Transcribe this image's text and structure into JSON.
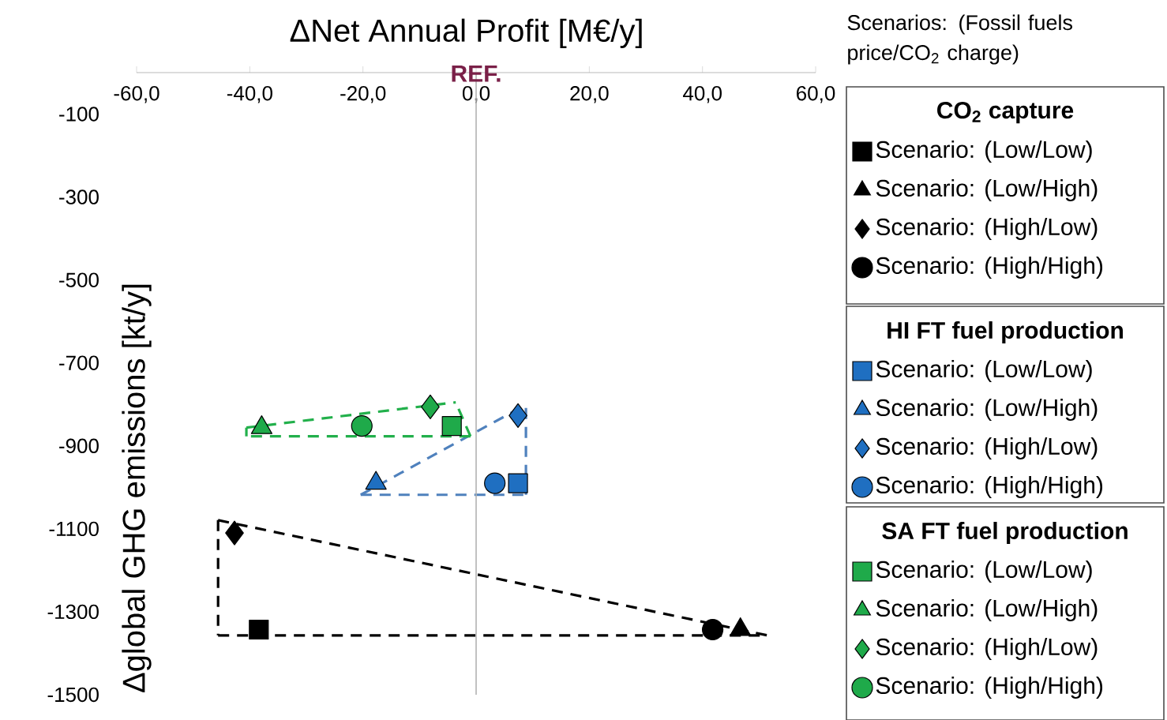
{
  "chart_data": {
    "type": "scatter",
    "xlabel": "ΔNet Annual Profit [M€/y]",
    "ylabel": "Δglobal GHG emissions [kt/y]",
    "legend_title": "Scenarios: (Fossil fuels price/CO$_{2}$ charge)",
    "legend": "right",
    "xlim": [
      -60,
      60
    ],
    "ylim": [
      -1500,
      0
    ],
    "xticks": [
      {
        "value": -60,
        "label": "-60,0"
      },
      {
        "value": -40,
        "label": "-40,0"
      },
      {
        "value": -20,
        "label": "-20,0"
      },
      {
        "value": 0,
        "label": "0,0"
      },
      {
        "value": 20,
        "label": "20,0"
      },
      {
        "value": 40,
        "label": "40,0"
      },
      {
        "value": 60,
        "label": "60,0"
      }
    ],
    "yticks": [
      -1500,
      -1300,
      -1100,
      -900,
      -700,
      -500,
      -300,
      -100
    ],
    "ref_lines": [
      {
        "axis": "x",
        "value": 0,
        "label": "REF.",
        "color": "#b2b2b2"
      }
    ],
    "annotations": [
      "CO$_{2}$ capture",
      "HI FT fuel production",
      "SA FT fuel production"
    ],
    "series": [
      {
        "name": "Scenario: (Low/Low)",
        "color": "#000000",
        "marker": "square",
        "x": [
          -38.4
        ],
        "values": [
          -1343
        ]
      },
      {
        "name": "Scenario: (Low/High)",
        "color": "#000000",
        "marker": "triangle",
        "x": [
          46.7
        ],
        "values": [
          -1343
        ]
      },
      {
        "name": "Scenario: (High/Low)",
        "color": "#000000",
        "marker": "diamond",
        "x": [
          -42.7
        ],
        "values": [
          -1110
        ]
      },
      {
        "name": "Scenario: (High/High)",
        "color": "#000000",
        "marker": "circle",
        "x": [
          41.8
        ],
        "values": [
          -1343
        ]
      },
      {
        "name": "Scenario: (Low/Low)",
        "color": "#1f6fc1",
        "marker": "square",
        "x": [
          7.4
        ],
        "values": [
          -990
        ]
      },
      {
        "name": "Scenario: (Low/High)",
        "color": "#1f6fc1",
        "marker": "triangle",
        "x": [
          -17.7
        ],
        "values": [
          -990
        ]
      },
      {
        "name": "Scenario: (High/Low)",
        "color": "#1f6fc1",
        "marker": "diamond",
        "x": [
          7.4
        ],
        "values": [
          -827
        ]
      },
      {
        "name": "Scenario: (High/High)",
        "color": "#1f6fc1",
        "marker": "circle",
        "x": [
          3.3
        ],
        "values": [
          -990
        ]
      },
      {
        "name": "Scenario: (Low/Low)",
        "color": "#1faa4a",
        "marker": "square",
        "x": [
          -4.3
        ],
        "values": [
          -852
        ]
      },
      {
        "name": "Scenario: (Low/High)",
        "color": "#1faa4a",
        "marker": "triangle",
        "x": [
          -37.9
        ],
        "values": [
          -856
        ]
      },
      {
        "name": "Scenario: (High/Low)",
        "color": "#1faa4a",
        "marker": "diamond",
        "x": [
          -8.1
        ],
        "values": [
          -806
        ]
      },
      {
        "name": "Scenario: (High/High)",
        "color": "#1faa4a",
        "marker": "circle",
        "x": [
          -20.2
        ],
        "values": [
          -852
        ]
      },
      {
        "type": "line",
        "color": "#000000",
        "marker": "none",
        "line_style": "dashed",
        "x": [
          -45.6,
          -45.6
        ],
        "values": [
          -1079,
          -1357
        ]
      },
      {
        "type": "line",
        "color": "#000000",
        "marker": "none",
        "line_style": "dashed",
        "x": [
          -45.6,
          51.5
        ],
        "values": [
          -1357,
          -1357
        ]
      },
      {
        "type": "line",
        "color": "#000000",
        "marker": "none",
        "line_style": "dashed",
        "x": [
          -45.6,
          51.5
        ],
        "values": [
          -1079,
          -1357
        ]
      },
      {
        "type": "line",
        "color": "#4f81bd",
        "marker": "none",
        "line_style": "dashed",
        "x": [
          -20.4,
          8.8
        ],
        "values": [
          -1018,
          -1018
        ]
      },
      {
        "type": "line",
        "color": "#4f81bd",
        "marker": "none",
        "line_style": "dashed",
        "x": [
          8.8,
          8.8
        ],
        "values": [
          -1018,
          -801
        ]
      },
      {
        "type": "line",
        "color": "#4f81bd",
        "marker": "none",
        "line_style": "dashed",
        "x": [
          -20.4,
          8.8
        ],
        "values": [
          -1018,
          -801
        ]
      },
      {
        "type": "line",
        "color": "#22b04b",
        "marker": "none",
        "line_style": "dashed",
        "x": [
          -40.6,
          -40.6
        ],
        "values": [
          -856,
          -877
        ]
      },
      {
        "type": "line",
        "color": "#22b04b",
        "marker": "none",
        "line_style": "dashed",
        "x": [
          -1.0,
          -40.6
        ],
        "values": [
          -877,
          -877
        ]
      },
      {
        "type": "line",
        "color": "#22b04b",
        "marker": "none",
        "line_style": "dashed",
        "x": [
          -1.0,
          -3.6
        ],
        "values": [
          -877,
          -795
        ]
      },
      {
        "type": "line",
        "color": "#22b04b",
        "marker": "none",
        "line_style": "dashed",
        "x": [
          -40.6,
          -3.6
        ],
        "values": [
          -856,
          -795
        ]
      }
    ]
  }
}
